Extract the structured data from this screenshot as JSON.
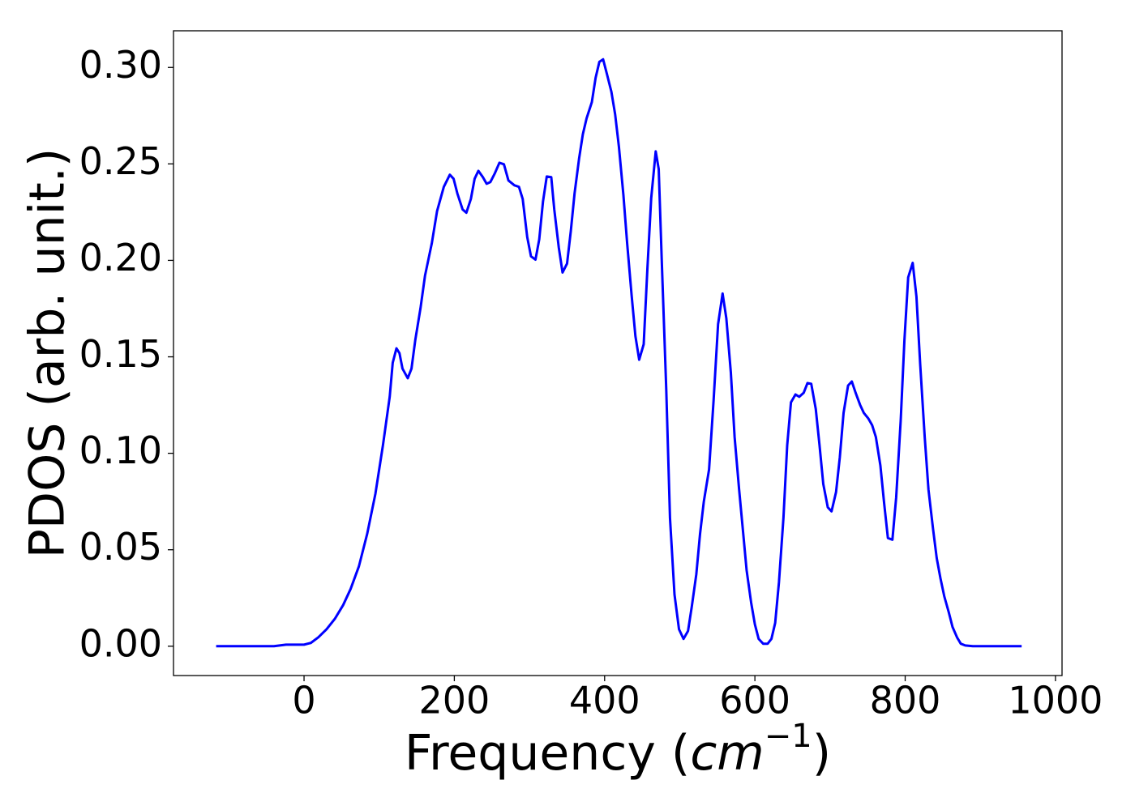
{
  "chart_data": {
    "type": "line",
    "x_label": [
      "Frequency (",
      "cm",
      "−1",
      ")"
    ],
    "y_label": "PDOS (arb. unit.)",
    "xlim": [
      -173.75,
      1008.75
    ],
    "xticks": [
      0,
      200,
      400,
      600,
      800,
      1000
    ],
    "ylim": [
      -0.0152,
      0.319
    ],
    "yticks": [
      {
        "value": 0,
        "label": "0.00"
      },
      0.05,
      {
        "value": 0.1,
        "label": "0.10"
      },
      0.15,
      {
        "value": 0.2,
        "label": "0.20"
      },
      0.25,
      {
        "value": 0.3,
        "label": "0.30"
      }
    ],
    "grid": false,
    "x": [
      -117,
      -40,
      -24,
      0,
      9,
      19,
      30,
      41,
      52,
      62,
      73,
      84,
      95,
      105,
      114,
      118,
      123,
      127,
      131,
      138,
      143,
      148,
      155,
      161,
      170,
      177,
      186,
      194,
      199,
      204,
      211,
      216,
      222,
      227,
      232,
      238,
      243,
      248,
      254,
      260,
      266,
      272,
      280,
      286,
      291,
      297,
      302,
      308,
      313,
      318,
      323,
      329,
      333,
      339,
      344,
      350,
      355,
      360,
      366,
      371,
      376,
      383,
      388,
      393,
      398,
      403,
      409,
      414,
      419,
      425,
      430,
      436,
      441,
      446,
      452,
      457,
      462,
      468,
      472,
      476,
      482,
      487,
      493,
      499,
      505,
      511,
      516,
      522,
      527,
      532,
      539,
      545,
      551,
      557,
      562,
      568,
      573,
      579,
      584,
      589,
      595,
      600,
      605,
      611,
      617,
      622,
      627,
      632,
      638,
      643,
      648,
      654,
      659,
      665,
      670,
      675,
      681,
      686,
      691,
      697,
      702,
      708,
      713,
      718,
      724,
      729,
      734,
      740,
      745,
      751,
      756,
      761,
      767,
      772,
      777,
      783,
      788,
      794,
      799,
      804,
      810,
      815,
      820,
      826,
      831,
      837,
      842,
      847,
      852,
      858,
      863,
      869,
      874,
      880,
      890,
      955
    ],
    "series": [
      {
        "name": "PDOS",
        "color": "#0000ff",
        "values": [
          0,
          0,
          0.0008,
          0.0008,
          0.0017,
          0.0046,
          0.0088,
          0.0142,
          0.0213,
          0.0297,
          0.0414,
          0.0582,
          0.0791,
          0.1042,
          0.1293,
          0.1469,
          0.1544,
          0.1519,
          0.1439,
          0.1389,
          0.1439,
          0.1586,
          0.1753,
          0.1921,
          0.2088,
          0.2255,
          0.2381,
          0.2444,
          0.2423,
          0.2347,
          0.2264,
          0.2247,
          0.2318,
          0.2423,
          0.2464,
          0.2431,
          0.2397,
          0.2406,
          0.2452,
          0.2506,
          0.2498,
          0.2414,
          0.2389,
          0.2381,
          0.2318,
          0.2121,
          0.2021,
          0.2004,
          0.2109,
          0.2305,
          0.2435,
          0.2431,
          0.2264,
          0.2067,
          0.1937,
          0.1983,
          0.2151,
          0.2347,
          0.2527,
          0.2653,
          0.2736,
          0.282,
          0.2946,
          0.3029,
          0.3042,
          0.2967,
          0.2874,
          0.2757,
          0.259,
          0.2339,
          0.2088,
          0.1816,
          0.1607,
          0.1485,
          0.1565,
          0.1962,
          0.2322,
          0.2565,
          0.2473,
          0.2004,
          0.1335,
          0.0665,
          0.0268,
          0.0088,
          0.0038,
          0.0079,
          0.0205,
          0.0372,
          0.0582,
          0.0749,
          0.0916,
          0.1272,
          0.1669,
          0.1828,
          0.1699,
          0.1418,
          0.1084,
          0.0812,
          0.0603,
          0.0393,
          0.0226,
          0.0113,
          0.0038,
          0.0013,
          0.0013,
          0.0038,
          0.0121,
          0.0331,
          0.0665,
          0.1042,
          0.1264,
          0.1305,
          0.1293,
          0.1314,
          0.1364,
          0.136,
          0.123,
          0.1042,
          0.0841,
          0.072,
          0.0699,
          0.0799,
          0.0979,
          0.1209,
          0.1351,
          0.1372,
          0.1314,
          0.1251,
          0.1209,
          0.118,
          0.1146,
          0.1084,
          0.0937,
          0.0741,
          0.0561,
          0.0552,
          0.077,
          0.1167,
          0.1586,
          0.1912,
          0.1987,
          0.1812,
          0.146,
          0.1084,
          0.0812,
          0.0611,
          0.0456,
          0.0351,
          0.0259,
          0.0176,
          0.01,
          0.0046,
          0.0013,
          0.0004,
          0,
          0
        ]
      }
    ]
  }
}
